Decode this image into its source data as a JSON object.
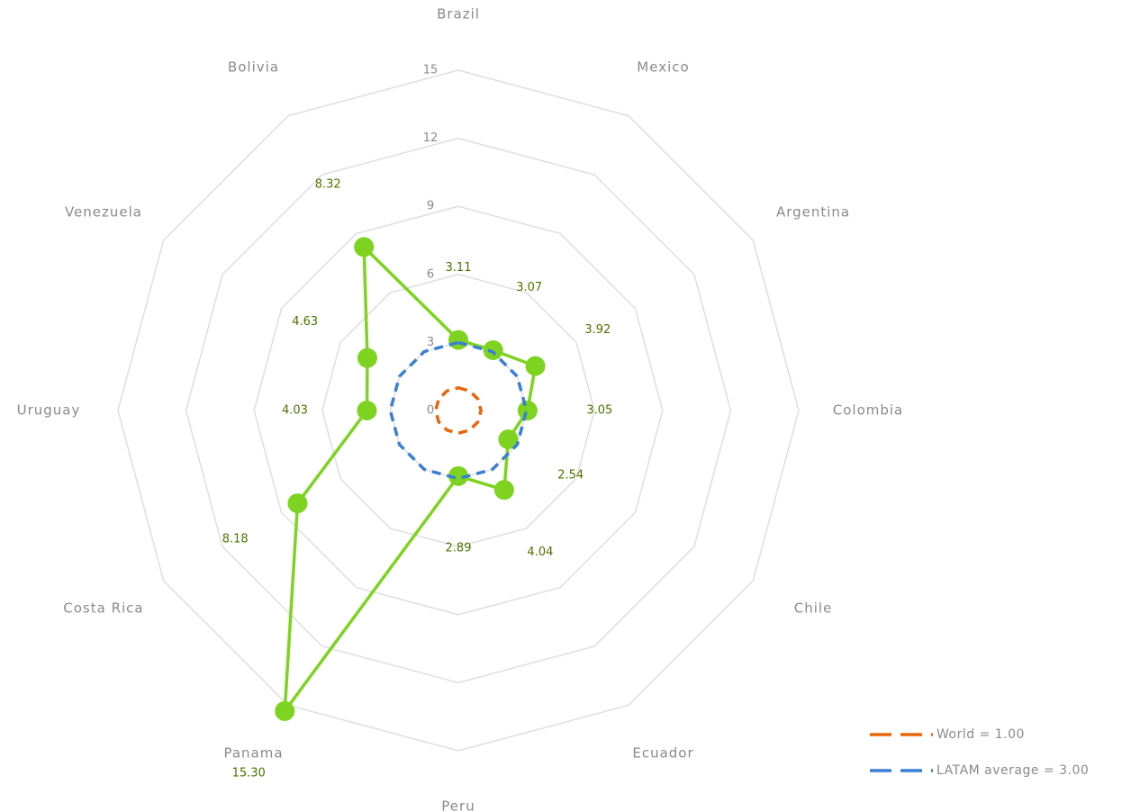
{
  "chart_data": {
    "type": "radar",
    "categories": [
      "Brazil",
      "Mexico",
      "Argentina",
      "Colombia",
      "Chile",
      "Ecuador",
      "Peru",
      "Panama",
      "Costa Rica",
      "Uruguay",
      "Venezuela",
      "Bolivia"
    ],
    "rlim": [
      0,
      15
    ],
    "rticks": [
      0,
      3,
      6,
      9,
      12,
      15
    ],
    "grid": true,
    "legend": "bottom-right",
    "series": [
      {
        "color": "#7ed321",
        "markers": true,
        "values": [
          3.11,
          3.07,
          3.92,
          3.05,
          2.54,
          4.04,
          2.89,
          15.3,
          8.18,
          4.03,
          4.63,
          8.32
        ],
        "value_labels": [
          "3.11",
          "3.07",
          "3.92",
          "3.05",
          "2.54",
          "4.04",
          "2.89",
          "15.30",
          "8.18",
          "4.03",
          "4.63",
          "8.32"
        ]
      },
      {
        "name": "World = 1.00",
        "color": "#e8650a",
        "dash": true,
        "values": [
          1,
          1,
          1,
          1,
          1,
          1,
          1,
          1,
          1,
          1,
          1,
          1
        ]
      },
      {
        "name": "LATAM average = 3.00",
        "color": "#3a7fd5",
        "dash": true,
        "values": [
          3,
          3,
          3,
          3,
          3,
          3,
          3,
          3,
          3,
          3,
          3,
          3
        ]
      }
    ]
  }
}
